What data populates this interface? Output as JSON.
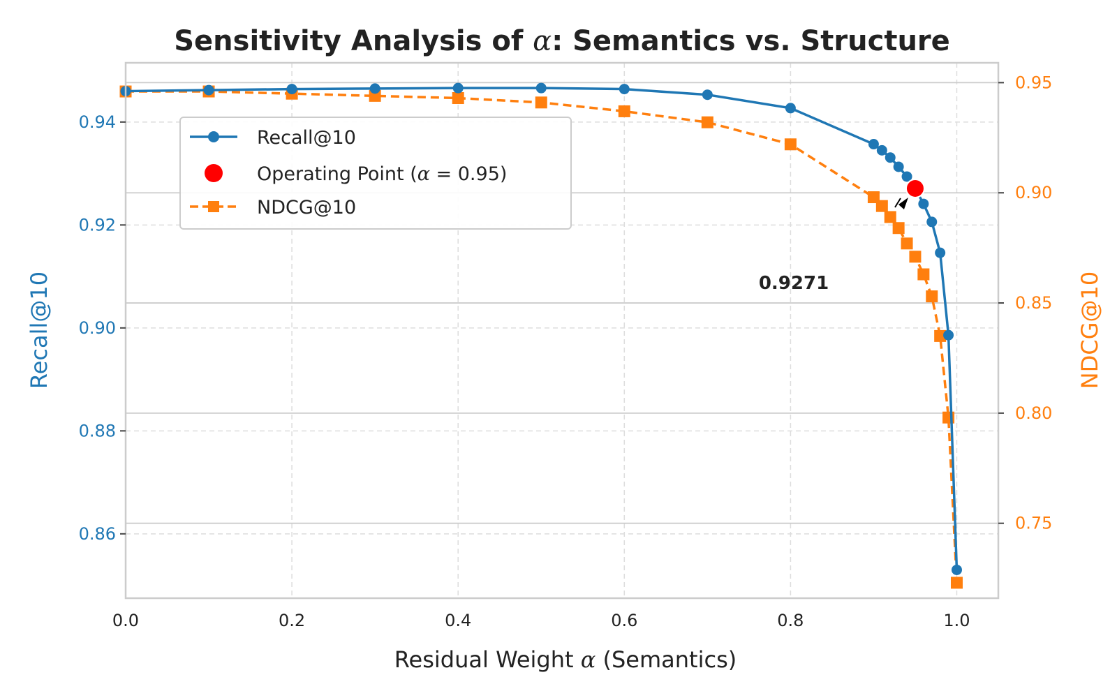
{
  "chart_data": {
    "type": "line",
    "title_parts": [
      "Sensitivity Analysis of ",
      "α",
      ": Semantics vs. Structure"
    ],
    "xlabel_parts": [
      "Residual Weight ",
      "α",
      " (Semantics)"
    ],
    "ylabel_left": "Recall@10",
    "ylabel_right": "NDCG@10",
    "xlim": [
      0.0,
      1.05
    ],
    "ylim_left": [
      0.8475,
      0.9515
    ],
    "ylim_right": [
      0.716,
      0.959
    ],
    "xticks": [
      "0.0",
      "0.2",
      "0.4",
      "0.6",
      "0.8",
      "1.0"
    ],
    "yticks_left": [
      "0.86",
      "0.88",
      "0.90",
      "0.92",
      "0.94"
    ],
    "yticks_right": [
      "0.75",
      "0.80",
      "0.85",
      "0.90",
      "0.95"
    ],
    "grid": true,
    "legend_position": "upper-left",
    "x": [
      0.0,
      0.1,
      0.2,
      0.3,
      0.4,
      0.5,
      0.6,
      0.7,
      0.8,
      0.9,
      0.91,
      0.92,
      0.93,
      0.94,
      0.95,
      0.96,
      0.97,
      0.98,
      0.99,
      1.0
    ],
    "series": [
      {
        "name": "Recall@10",
        "axis": "left",
        "color": "#1f77b4",
        "marker": "circle",
        "linestyle": "solid",
        "values": [
          0.946,
          0.9462,
          0.9464,
          0.9465,
          0.9466,
          0.9466,
          0.9464,
          0.9453,
          0.9427,
          0.9357,
          0.9345,
          0.9331,
          0.9313,
          0.9294,
          0.9271,
          0.9241,
          0.9206,
          0.9146,
          0.8986,
          0.853
        ]
      },
      {
        "name": "NDCG@10",
        "axis": "right",
        "color": "#ff7f0e",
        "marker": "square",
        "linestyle": "dashed",
        "values": [
          0.946,
          0.946,
          0.945,
          0.944,
          0.943,
          0.941,
          0.937,
          0.932,
          0.922,
          0.898,
          0.894,
          0.889,
          0.884,
          0.877,
          0.871,
          0.863,
          0.853,
          0.835,
          0.798,
          0.723
        ]
      }
    ],
    "operating_point": {
      "label_parts": [
        "Operating Point (",
        "α",
        " = 0.95)"
      ],
      "x": 0.95,
      "y": 0.9271,
      "color": "#ff0000",
      "annotation": "0.9271"
    },
    "colors": {
      "left_axis": "#1f77b4",
      "right_axis": "#ff7f0e",
      "text": "#222222"
    }
  }
}
